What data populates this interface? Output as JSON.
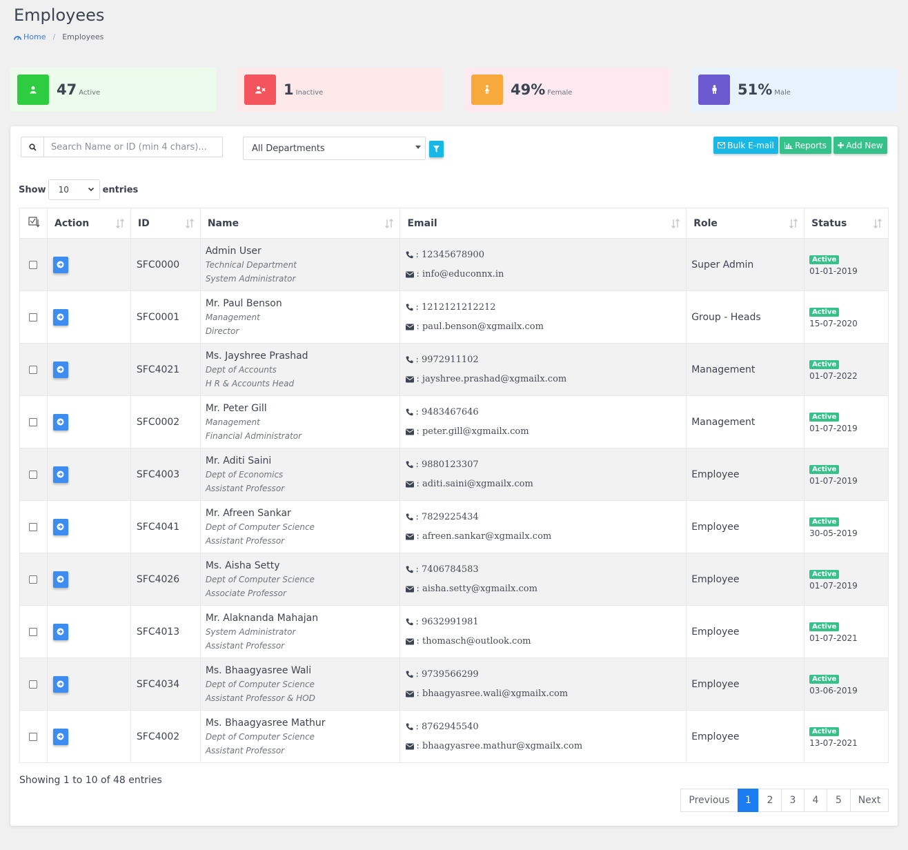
{
  "page": {
    "title": "Employees",
    "breadcrumb": {
      "home": "Home",
      "current": "Employees"
    }
  },
  "stats": [
    {
      "value": "47",
      "label": "Active",
      "icon": "user-icon",
      "icon_color": "#2ecc40",
      "bg": "#ecfbec"
    },
    {
      "value": "1",
      "label": "Inactive",
      "icon": "user-times-icon",
      "icon_color": "#f4555d",
      "bg": "#fde9ea"
    },
    {
      "value": "49%",
      "label": "Female",
      "icon": "female-icon",
      "icon_color": "#f7a93b",
      "bg": "#fde9ef"
    },
    {
      "value": "51%",
      "label": "Male",
      "icon": "male-icon",
      "icon_color": "#6a59cf",
      "bg": "#e7f2fc"
    }
  ],
  "toolbar": {
    "search_placeholder": "Search Name or ID (min 4 chars)...",
    "department": "All Departments",
    "bulk_email": "Bulk E-mail",
    "reports": "Reports",
    "add_new": "Add New",
    "colors": {
      "bulk_email": "#17b8e6",
      "reports": "#35c28a",
      "add_new": "#35c28a"
    }
  },
  "length": {
    "show": "Show",
    "value": "10",
    "entries": "entries"
  },
  "table": {
    "headers": [
      "Action",
      "ID",
      "Name",
      "Email",
      "Role",
      "Status"
    ],
    "rows": [
      {
        "id": "SFC0000",
        "name": "Admin User",
        "dept": "Technical Department",
        "designation": "System Administrator",
        "phone": ": 12345678900",
        "email": ": info@educonnx.in",
        "role": "Super Admin",
        "status": "Active",
        "date": "01-01-2019"
      },
      {
        "id": "SFC0001",
        "name": "Mr. Paul Benson",
        "dept": "Management",
        "designation": "Director",
        "phone": ": 1212121212212",
        "email": ": paul.benson@xgmailx.com",
        "role": "Group - Heads",
        "status": "Active",
        "date": "15-07-2020"
      },
      {
        "id": "SFC4021",
        "name": "Ms. Jayshree Prashad",
        "dept": "Dept of Accounts",
        "designation": "H R & Accounts Head",
        "phone": ": 9972911102",
        "email": ": jayshree.prashad@xgmailx.com",
        "role": "Management",
        "status": "Active",
        "date": "01-07-2022"
      },
      {
        "id": "SFC0002",
        "name": "Mr. Peter Gill",
        "dept": "Management",
        "designation": "Financial Administrator",
        "phone": ": 9483467646",
        "email": ": peter.gill@xgmailx.com",
        "role": "Management",
        "status": "Active",
        "date": "01-07-2019"
      },
      {
        "id": "SFC4003",
        "name": "Mr. Aditi Saini",
        "dept": "Dept of Economics",
        "designation": "Assistant Professor",
        "phone": ": 9880123307",
        "email": ": aditi.saini@xgmailx.com",
        "role": "Employee",
        "status": "Active",
        "date": "01-07-2019"
      },
      {
        "id": "SFC4041",
        "name": "Mr. Afreen Sankar",
        "dept": "Dept of Computer Science",
        "designation": "Assistant Professor",
        "phone": ": 7829225434",
        "email": ": afreen.sankar@xgmailx.com",
        "role": "Employee",
        "status": "Active",
        "date": "30-05-2019"
      },
      {
        "id": "SFC4026",
        "name": "Ms. Aisha Setty",
        "dept": "Dept of Computer Science",
        "designation": "Associate Professor",
        "phone": ": 7406784583",
        "email": ": aisha.setty@xgmailx.com",
        "role": "Employee",
        "status": "Active",
        "date": "01-07-2019"
      },
      {
        "id": "SFC4013",
        "name": "Mr. Alaknanda Mahajan",
        "dept": "System Administrator",
        "designation": "Assistant Professor",
        "phone": ": 9632991981",
        "email": ": thomasch@outlook.com",
        "role": "Employee",
        "status": "Active",
        "date": "01-07-2021"
      },
      {
        "id": "SFC4034",
        "name": "Ms. Bhaagyasree Wali",
        "dept": "Dept of Computer Science",
        "designation": "Assistant Professor & HOD",
        "phone": ": 9739566299",
        "email": ": bhaagyasree.wali@xgmailx.com",
        "role": "Employee",
        "status": "Active",
        "date": "03-06-2019"
      },
      {
        "id": "SFC4002",
        "name": "Ms. Bhaagyasree Mathur",
        "dept": "Dept of Computer Science",
        "designation": "Assistant Professor",
        "phone": ": 8762945540",
        "email": ": bhaagyasree.mathur@xgmailx.com",
        "role": "Employee",
        "status": "Active",
        "date": "13-07-2021"
      }
    ]
  },
  "footer": {
    "info": "Showing 1 to 10 of 48 entries",
    "pagination": {
      "previous": "Previous",
      "pages": [
        "1",
        "2",
        "3",
        "4",
        "5"
      ],
      "active": "1",
      "next": "Next"
    }
  }
}
